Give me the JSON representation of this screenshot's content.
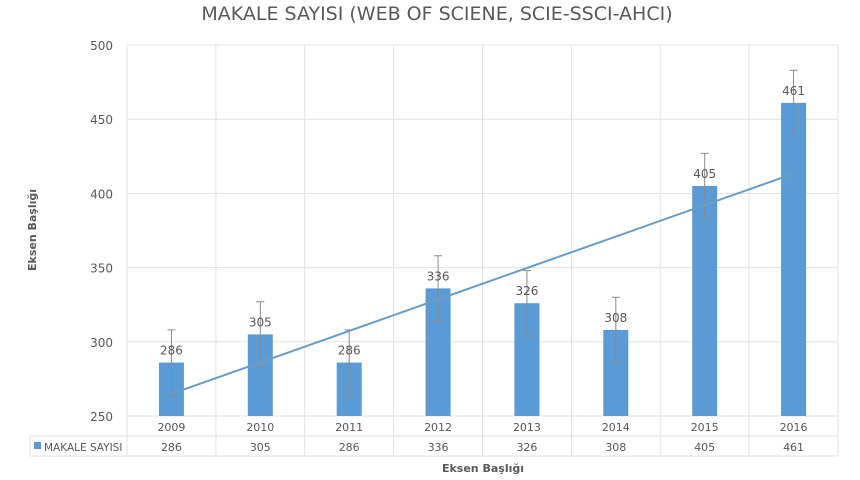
{
  "chart_data": {
    "type": "bar",
    "title": "MAKALE SAYISI (WEB OF SCIENE, SCIE-SSCI-AHCI)",
    "xlabel": "Eksen Başlığı",
    "ylabel": "Eksen Başlığı",
    "categories": [
      "2009",
      "2010",
      "2011",
      "2012",
      "2013",
      "2014",
      "2015",
      "2016"
    ],
    "series": [
      {
        "name": "MAKALE SAYISI",
        "values": [
          286,
          305,
          286,
          336,
          326,
          308,
          405,
          461
        ],
        "color": "#5b9bd5"
      }
    ],
    "error_bar": 22,
    "trendline": {
      "type": "linear",
      "color": "#6a9cc4"
    },
    "ylim": [
      250,
      500
    ],
    "yticks": [
      250,
      300,
      350,
      400,
      450,
      500
    ],
    "grid": true,
    "data_labels": true,
    "data_table": true
  }
}
